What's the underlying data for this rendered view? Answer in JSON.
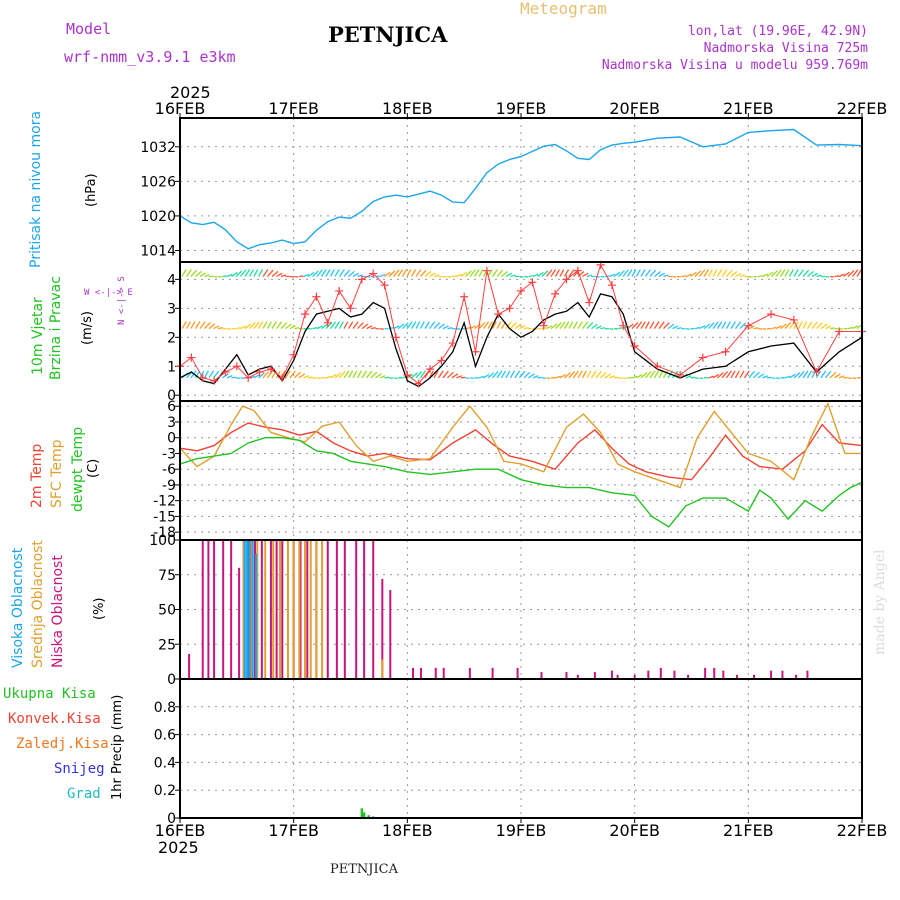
{
  "header": {
    "model_label": "Model",
    "model_name": "wrf-nmm_v3.9.1  e3km",
    "station": "PETNJICA",
    "meteogram": "Meteogram",
    "coords": "lon,lat (19.96E, 42.9N)",
    "altitude": "Nadmorska Visina 725m",
    "model_altitude": "Nadmorska Visina u modelu 959.769m",
    "year_top": "2025",
    "year_bottom": "2025",
    "footer_station": "PETNJICA",
    "watermark": "made by Angel"
  },
  "colors": {
    "pressure": "#1ba6ea",
    "wind_label": "#22c322",
    "wind_speed": "#000000",
    "gust": "#ff4040",
    "temp2m": "#ee4433",
    "sfc_temp": "#e0a030",
    "dewpt": "#22c322",
    "high_cloud": "#1ba6ea",
    "mid_cloud": "#e0a030",
    "low_cloud": "#c8147d",
    "total_precip": "#22c322",
    "conv_precip": "#ee4433",
    "frz_precip": "#ee7722",
    "snow": "#3333dd",
    "hail": "#22bbbb",
    "dir_legend": "#aa33cc"
  },
  "chart_data": {
    "type": "meteogram",
    "x_ticks": [
      "16FEB",
      "17FEB",
      "18FEB",
      "19FEB",
      "20FEB",
      "21FEB",
      "22FEB"
    ],
    "x_range_days": [
      0,
      6
    ],
    "panels": [
      {
        "id": "pressure",
        "type": "line",
        "ylabel": "Pritisak na nivou mora",
        "yunit": "(hPa)",
        "ylim": [
          1012,
          1037
        ],
        "yticks": [
          1014,
          1020,
          1026,
          1032
        ],
        "series": [
          {
            "name": "Pritisak na nivou mora",
            "x": [
              0,
              0.1,
              0.2,
              0.3,
              0.4,
              0.5,
              0.6,
              0.7,
              0.8,
              0.9,
              1.0,
              1.1,
              1.2,
              1.3,
              1.4,
              1.5,
              1.6,
              1.7,
              1.8,
              1.9,
              2.0,
              2.1,
              2.2,
              2.3,
              2.4,
              2.5,
              2.6,
              2.7,
              2.8,
              2.9,
              3.0,
              3.1,
              3.2,
              3.3,
              3.4,
              3.5,
              3.6,
              3.7,
              3.8,
              3.9,
              4.0,
              4.2,
              4.4,
              4.6,
              4.8,
              5.0,
              5.2,
              5.4,
              5.6,
              5.8,
              6.0
            ],
            "values": [
              1020,
              1018.8,
              1018.5,
              1018.9,
              1017.6,
              1015.5,
              1014.3,
              1015.0,
              1015.3,
              1015.8,
              1015.2,
              1015.5,
              1017.5,
              1019.0,
              1019.8,
              1019.6,
              1020.8,
              1022.5,
              1023.3,
              1023.6,
              1023.3,
              1023.8,
              1024.3,
              1023.6,
              1022.4,
              1022.3,
              1024.8,
              1027.5,
              1029.0,
              1029.8,
              1030.3,
              1031.2,
              1032.1,
              1032.4,
              1031.3,
              1030.0,
              1029.8,
              1031.5,
              1032.3,
              1032.6,
              1032.8,
              1033.5,
              1033.7,
              1032.0,
              1032.5,
              1034.5,
              1034.8,
              1035.0,
              1032.3,
              1032.4,
              1032.2
            ]
          }
        ]
      },
      {
        "id": "wind",
        "type": "line+barbs",
        "ylabel": "10m Vjetar Brzina i Pravac",
        "yunit": "(m/s)",
        "dir_legend": "W <-|-> E",
        "dir_axis": "N <-|-> S",
        "ylim": [
          -0.2,
          4.6
        ],
        "yticks": [
          0,
          1,
          2,
          3,
          4
        ],
        "barb_levels": [
          0.6,
          2.3,
          4.1
        ],
        "series": [
          {
            "name": "wind_speed",
            "x": [
              0,
              0.1,
              0.2,
              0.3,
              0.4,
              0.5,
              0.6,
              0.7,
              0.8,
              0.9,
              1.0,
              1.1,
              1.2,
              1.3,
              1.4,
              1.5,
              1.6,
              1.7,
              1.8,
              1.9,
              2.0,
              2.1,
              2.2,
              2.3,
              2.4,
              2.5,
              2.6,
              2.7,
              2.8,
              2.9,
              3.0,
              3.1,
              3.2,
              3.3,
              3.4,
              3.5,
              3.6,
              3.7,
              3.8,
              3.9,
              4.0,
              4.2,
              4.4,
              4.6,
              4.8,
              5.0,
              5.2,
              5.4,
              5.6,
              5.8,
              6.0
            ],
            "values": [
              0.6,
              0.8,
              0.5,
              0.4,
              0.9,
              1.4,
              0.7,
              0.9,
              1.0,
              0.5,
              1.2,
              2.2,
              2.8,
              2.9,
              3.0,
              2.7,
              2.8,
              3.2,
              3.0,
              1.6,
              0.5,
              0.3,
              0.6,
              1.0,
              1.5,
              2.5,
              1.0,
              2.0,
              2.8,
              2.3,
              2.0,
              2.2,
              2.6,
              2.8,
              2.9,
              3.2,
              2.7,
              3.5,
              3.4,
              2.8,
              1.5,
              0.9,
              0.6,
              0.9,
              1.0,
              1.5,
              1.7,
              1.8,
              0.8,
              1.5,
              2.0
            ]
          },
          {
            "name": "gust",
            "x": [
              0,
              0.1,
              0.2,
              0.3,
              0.4,
              0.5,
              0.6,
              0.7,
              0.8,
              0.9,
              1.0,
              1.1,
              1.2,
              1.3,
              1.4,
              1.5,
              1.6,
              1.7,
              1.8,
              1.9,
              2.0,
              2.1,
              2.2,
              2.3,
              2.4,
              2.5,
              2.6,
              2.7,
              2.8,
              2.9,
              3.0,
              3.1,
              3.2,
              3.3,
              3.4,
              3.5,
              3.6,
              3.7,
              3.8,
              3.9,
              4.0,
              4.2,
              4.4,
              4.6,
              4.8,
              5.0,
              5.2,
              5.4,
              5.6,
              5.8,
              6.0
            ],
            "values": [
              1.0,
              1.3,
              0.6,
              0.5,
              0.8,
              1.0,
              0.6,
              0.8,
              0.9,
              0.6,
              1.4,
              2.8,
              3.4,
              2.5,
              3.6,
              3.0,
              4.0,
              4.2,
              3.8,
              2.0,
              0.7,
              0.4,
              0.9,
              1.2,
              1.8,
              3.4,
              1.5,
              4.3,
              2.8,
              3.0,
              3.6,
              3.9,
              2.4,
              3.5,
              4.0,
              4.3,
              3.2,
              4.5,
              3.8,
              2.4,
              1.7,
              1.0,
              0.7,
              1.3,
              1.5,
              2.4,
              2.8,
              2.6,
              0.8,
              2.2,
              2.2
            ]
          }
        ]
      },
      {
        "id": "temperature",
        "type": "line",
        "ylabel": "2m Temp / SFC Temp / dewpt Temp",
        "labels": [
          "2m Temp",
          "SFC Temp",
          "dewpt Temp"
        ],
        "yunit": "(C)",
        "ylim": [
          -19.5,
          7
        ],
        "yticks": [
          -18,
          -15,
          -12,
          -9,
          -6,
          -3,
          0,
          3,
          6
        ],
        "series": [
          {
            "name": "2m Temp",
            "x": [
              0,
              0.15,
              0.3,
              0.45,
              0.6,
              0.75,
              0.9,
              1.05,
              1.2,
              1.35,
              1.5,
              1.65,
              1.8,
              2.0,
              2.2,
              2.4,
              2.6,
              2.75,
              2.9,
              3.1,
              3.3,
              3.5,
              3.65,
              3.8,
              3.95,
              4.1,
              4.3,
              4.5,
              4.65,
              4.8,
              4.95,
              5.1,
              5.3,
              5.5,
              5.65,
              5.8,
              6.0
            ],
            "values": [
              -2,
              -2.5,
              -1.5,
              1.0,
              2.8,
              2.0,
              1.5,
              0.5,
              1.2,
              -1.0,
              -2.5,
              -3.5,
              -3.0,
              -4.0,
              -4.2,
              -1.0,
              1.5,
              -1.2,
              -3.5,
              -4.5,
              -6.0,
              -1.0,
              1.5,
              -2.0,
              -5.0,
              -6.5,
              -7.5,
              -8.0,
              -4.0,
              0.5,
              -3.5,
              -5.5,
              -6.0,
              -2.5,
              2.5,
              -1.0,
              -1.5
            ]
          },
          {
            "name": "SFC Temp",
            "x": [
              0,
              0.15,
              0.3,
              0.45,
              0.55,
              0.65,
              0.8,
              0.95,
              1.1,
              1.25,
              1.4,
              1.55,
              1.7,
              1.85,
              2.0,
              2.2,
              2.4,
              2.55,
              2.7,
              2.85,
              3.0,
              3.2,
              3.4,
              3.55,
              3.7,
              3.85,
              4.0,
              4.2,
              4.4,
              4.55,
              4.7,
              4.85,
              5.0,
              5.2,
              5.4,
              5.55,
              5.7,
              5.85,
              6.0
            ],
            "values": [
              -2,
              -5.5,
              -3.5,
              2.5,
              6.0,
              5.2,
              1.0,
              0.0,
              -0.8,
              2.2,
              3.0,
              -1.5,
              -4.5,
              -3.5,
              -4.5,
              -4.0,
              2.0,
              6.0,
              2.0,
              -4.5,
              -5.0,
              -6.5,
              2.0,
              4.5,
              1.0,
              -5.0,
              -6.5,
              -8.0,
              -9.5,
              0.0,
              5.0,
              1.0,
              -3.0,
              -4.5,
              -8.0,
              0.0,
              6.5,
              -3.0,
              -3.0
            ]
          },
          {
            "name": "dewpt Temp",
            "x": [
              0,
              0.15,
              0.3,
              0.45,
              0.6,
              0.75,
              0.9,
              1.05,
              1.2,
              1.35,
              1.5,
              1.65,
              1.8,
              2.0,
              2.2,
              2.4,
              2.6,
              2.8,
              3.0,
              3.2,
              3.4,
              3.6,
              3.8,
              4.0,
              4.15,
              4.3,
              4.45,
              4.6,
              4.8,
              5.0,
              5.1,
              5.2,
              5.35,
              5.5,
              5.65,
              5.8,
              5.9,
              6.0
            ],
            "values": [
              -5,
              -4.0,
              -3.5,
              -3.0,
              -1.0,
              0.0,
              0.0,
              -0.5,
              -2.5,
              -3.0,
              -4.5,
              -5.0,
              -5.5,
              -6.5,
              -7.0,
              -6.5,
              -6.0,
              -6.0,
              -8.0,
              -9.0,
              -9.5,
              -9.5,
              -10.5,
              -11.0,
              -15.0,
              -17.0,
              -13.0,
              -11.5,
              -11.5,
              -14.0,
              -10.0,
              -11.5,
              -15.5,
              -12.0,
              -14.0,
              -11.0,
              -9.5,
              -8.5
            ]
          }
        ]
      },
      {
        "id": "clouds",
        "type": "bar",
        "labels": [
          "Visoka Oblacnost",
          "Srednja Oblacnost",
          "Niska Oblacnost"
        ],
        "yunit": "(%)",
        "ylim": [
          0,
          100
        ],
        "yticks": [
          0,
          25,
          50,
          75,
          100
        ],
        "series": [
          {
            "name": "Niska Oblacnost",
            "x": [
              0.08,
              0.2,
              0.25,
              0.3,
              0.38,
              0.45,
              0.52,
              0.56,
              0.6,
              0.62,
              0.66,
              0.72,
              0.8,
              0.85,
              0.9,
              1.0,
              1.06,
              1.12,
              1.2,
              1.3,
              1.38,
              1.45,
              1.55,
              1.62,
              1.7,
              1.78,
              1.85,
              2.05,
              2.12,
              2.25,
              2.32,
              2.55,
              2.75,
              2.97,
              3.18,
              3.4,
              3.5,
              3.65,
              3.8,
              3.85,
              4.0,
              4.12,
              4.23,
              4.35,
              4.47,
              4.62,
              4.7,
              4.78,
              4.9,
              5.05,
              5.2,
              5.3,
              5.42,
              5.52
            ],
            "values": [
              18,
              100,
              100,
              100,
              100,
              100,
              80,
              100,
              100,
              100,
              100,
              100,
              100,
              100,
              100,
              100,
              100,
              100,
              100,
              100,
              100,
              100,
              100,
              100,
              100,
              72,
              64,
              8,
              8,
              8,
              8,
              8,
              8,
              8,
              5,
              5,
              3,
              5,
              6,
              3,
              3,
              6,
              8,
              6,
              3,
              8,
              8,
              6,
              3,
              3,
              6,
              6,
              3,
              6
            ]
          },
          {
            "name": "Srednja Oblacnost",
            "x": [
              0.56,
              0.63,
              0.68,
              0.75,
              0.82,
              0.88,
              0.95,
              1.0,
              1.05,
              1.1,
              1.15,
              1.2,
              1.25,
              1.78
            ],
            "values": [
              100,
              100,
              100,
              100,
              100,
              100,
              100,
              100,
              100,
              100,
              100,
              100,
              100,
              14
            ]
          },
          {
            "name": "Visoka Oblacnost",
            "x": [
              0.57,
              0.59,
              0.61,
              0.64,
              0.67
            ],
            "values": [
              100,
              100,
              100,
              100,
              90
            ]
          }
        ]
      },
      {
        "id": "precip",
        "type": "bar",
        "ylabel": "1hr Precip",
        "labels": [
          "Ukupna Kisa",
          "Konvek.Kisa",
          "Zaledj.Kisa",
          "Snijeg",
          "Grad"
        ],
        "yunit": "(mm)",
        "ylim": [
          0,
          1.0
        ],
        "yticks": [
          0,
          0.2,
          0.4,
          0.6,
          0.8
        ],
        "series": [
          {
            "name": "Ukupna Kisa",
            "x": [
              1.6,
              1.62,
              1.66
            ],
            "values": [
              0.07,
              0.04,
              0.02
            ]
          },
          {
            "name": "Snijeg",
            "x": [
              1.7
            ],
            "values": [
              0.01
            ]
          }
        ]
      }
    ]
  }
}
